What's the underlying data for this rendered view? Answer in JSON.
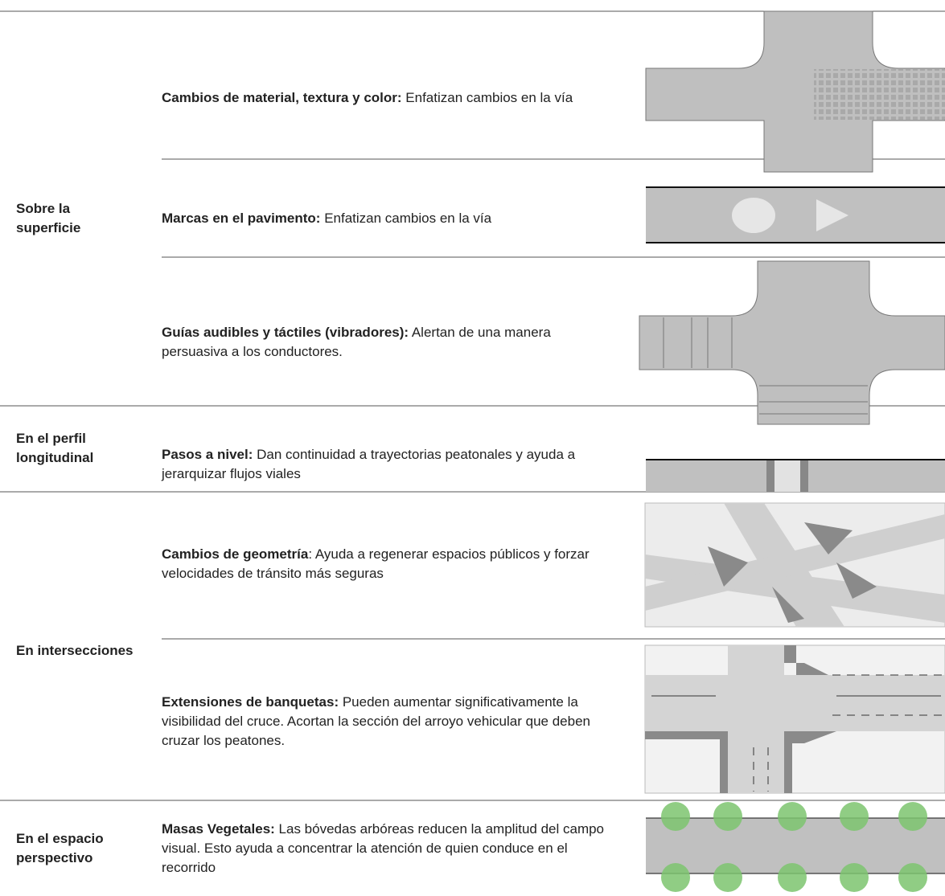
{
  "table": {
    "groups": [
      {
        "label": "Sobre la superficie",
        "rows": [
          {
            "term": "Cambios de material, textura y color:",
            "text": " Enfatizan cambios en la vía"
          },
          {
            "term": "Marcas en el pavimento:",
            "text": " Enfatizan cambios en la vía"
          },
          {
            "term": "Guías audibles y táctiles (vibradores):",
            "text": " Alertan de una manera persuasiva a los conductores."
          }
        ]
      },
      {
        "label": "En el perfil longitudinal",
        "rows": [
          {
            "term": "Pasos a nivel:",
            "text": " Dan continuidad a trayectorias peatonales y ayuda a jerarquizar flujos viales"
          }
        ]
      },
      {
        "label": "En intersecciones",
        "rows": [
          {
            "term": "Cambios de geometría",
            "text": ": Ayuda a regenerar espacios públicos y forzar velocidades de tránsito más seguras"
          },
          {
            "term": "Extensiones de banquetas:",
            "text": " Pueden aumentar significativamente la visibilidad del cruce. Acortan la sección del arroyo vehicular que deben cruzar los peatones."
          }
        ]
      },
      {
        "label": "En el espacio perspectivo",
        "rows": [
          {
            "term": "Masas Vegetales:",
            "text": " Las bóvedas arbóreas reducen la amplitud del campo visual. Esto ayuda a concentrar la atención de quien conduce en el recorrido"
          }
        ]
      }
    ]
  }
}
